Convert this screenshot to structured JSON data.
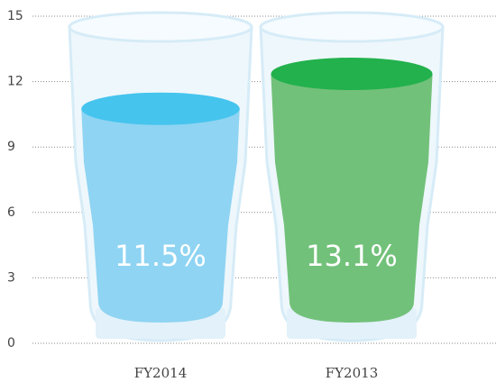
{
  "chart_data": {
    "type": "glass",
    "categories": [
      "FY2014",
      "FY2013"
    ],
    "values": [
      11.5,
      13.1
    ],
    "value_labels": [
      "11.5%",
      "13.1%"
    ],
    "colors": [
      "#8fd4f2",
      "#72c17a"
    ],
    "surface_colors": [
      "#45c4ee",
      "#22b14c"
    ],
    "ylim": [
      0,
      15
    ],
    "yticks": [
      0,
      3,
      6,
      9,
      12,
      15
    ],
    "grid": true
  }
}
